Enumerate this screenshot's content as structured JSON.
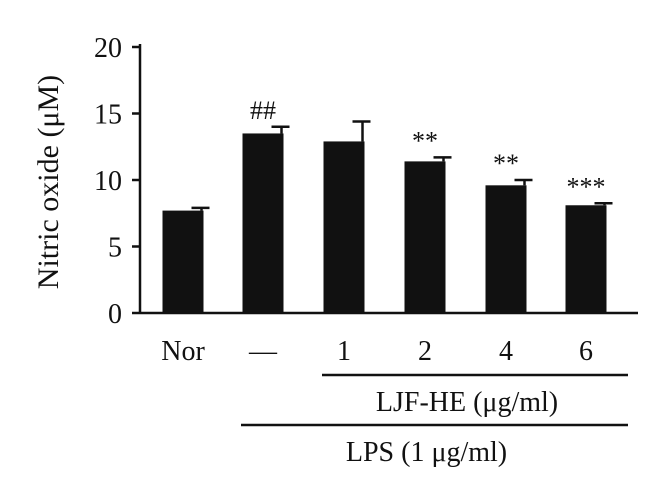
{
  "chart_data": {
    "type": "bar",
    "title": "",
    "ylabel": "Nitric oxide (μM)",
    "xlabel": "",
    "ylim": [
      0,
      20
    ],
    "yticks": [
      0,
      5,
      10,
      15,
      20
    ],
    "grid": false,
    "legend": "none",
    "categories": [
      "Nor",
      "—",
      "1",
      "2",
      "4",
      "6"
    ],
    "values": [
      7.7,
      13.5,
      12.9,
      11.4,
      9.6,
      8.1
    ],
    "errors": [
      0.2,
      0.5,
      1.5,
      0.3,
      0.4,
      0.15
    ],
    "annotations": [
      "",
      "##",
      "",
      "**",
      "**",
      "***"
    ],
    "bar_color": "#111111",
    "groups": [
      {
        "label": "LJF-HE (μg/ml)",
        "span": [
          2,
          5
        ]
      },
      {
        "label": "LPS (1 μg/ml)",
        "span": [
          1,
          5
        ]
      }
    ]
  }
}
